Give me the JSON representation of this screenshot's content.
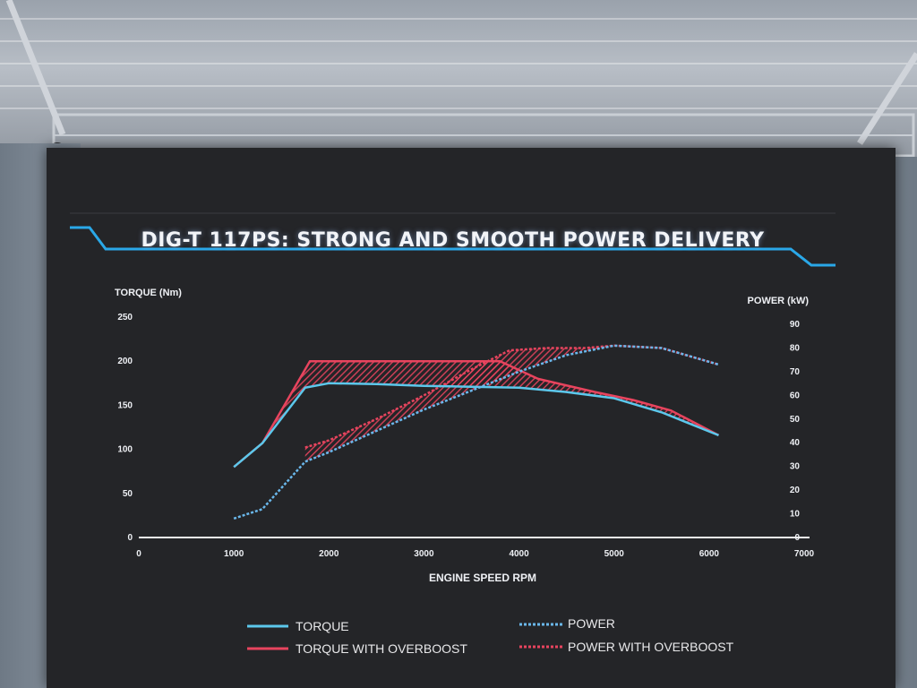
{
  "title": "DIG-T 117PS: STRONG AND SMOOTH POWER DELIVERY",
  "colors": {
    "torque": "#5cc8ec",
    "torque_overboost": "#e8445e",
    "power": "#6ab8ec",
    "power_overboost": "#e8445e",
    "accent_frame": "#2aa8e8",
    "background": "#242528"
  },
  "chart_data": {
    "type": "line",
    "title": "DIG-T 117PS: STRONG AND SMOOTH POWER DELIVERY",
    "xlabel": "ENGINE SPEED RPM",
    "ylabel": "TORQUE (Nm)",
    "y2label": "POWER (kW)",
    "xlim": [
      0,
      7000
    ],
    "ylim": [
      0,
      250
    ],
    "y2lim": [
      0,
      90
    ],
    "x_ticks": [
      "0",
      "1000",
      "2000",
      "3000",
      "4000",
      "5000",
      "6000",
      "7000"
    ],
    "y_ticks": [
      "0",
      "50",
      "100",
      "150",
      "200",
      "250"
    ],
    "y2_ticks": [
      "0",
      "10",
      "20",
      "30",
      "40",
      "50",
      "60",
      "70",
      "80",
      "90"
    ],
    "grid": false,
    "legend_position": "bottom",
    "series": [
      {
        "name": "TORQUE",
        "axis": "left",
        "style": "solid",
        "points": [
          [
            1000,
            80
          ],
          [
            1300,
            107
          ],
          [
            1750,
            170
          ],
          [
            2000,
            175
          ],
          [
            2500,
            174
          ],
          [
            3000,
            172
          ],
          [
            3500,
            171
          ],
          [
            4000,
            170
          ],
          [
            4500,
            165
          ],
          [
            5000,
            158
          ],
          [
            5500,
            142
          ],
          [
            6100,
            116
          ]
        ]
      },
      {
        "name": "TORQUE WITH OVERBOOST",
        "axis": "left",
        "style": "solid",
        "points": [
          [
            1000,
            80
          ],
          [
            1300,
            107
          ],
          [
            1800,
            200
          ],
          [
            2500,
            200
          ],
          [
            3000,
            200
          ],
          [
            3500,
            200
          ],
          [
            3800,
            200
          ],
          [
            4200,
            180
          ],
          [
            4800,
            165
          ],
          [
            5200,
            156
          ],
          [
            5600,
            144
          ],
          [
            6100,
            116
          ]
        ]
      },
      {
        "name": "POWER",
        "axis": "right",
        "style": "dotted",
        "points": [
          [
            1000,
            8
          ],
          [
            1300,
            12
          ],
          [
            1750,
            32
          ],
          [
            2000,
            36
          ],
          [
            2500,
            45
          ],
          [
            3000,
            54
          ],
          [
            3500,
            62
          ],
          [
            4000,
            70
          ],
          [
            4500,
            77
          ],
          [
            5000,
            81
          ],
          [
            5500,
            80
          ],
          [
            6100,
            73
          ]
        ]
      },
      {
        "name": "POWER WITH OVERBOOST",
        "axis": "right",
        "style": "dotted",
        "points": [
          [
            1750,
            38
          ],
          [
            2000,
            41
          ],
          [
            2500,
            50
          ],
          [
            3000,
            60
          ],
          [
            3500,
            71
          ],
          [
            3900,
            79
          ],
          [
            4300,
            80
          ],
          [
            4700,
            80
          ],
          [
            5000,
            81
          ],
          [
            5500,
            80
          ],
          [
            6100,
            73
          ]
        ]
      }
    ],
    "legend": [
      {
        "label": "TORQUE",
        "series": "TORQUE"
      },
      {
        "label": "POWER",
        "series": "POWER"
      },
      {
        "label": "TORQUE WITH OVERBOOST",
        "series": "TORQUE WITH OVERBOOST"
      },
      {
        "label": "POWER WITH OVERBOOST",
        "series": "POWER WITH OVERBOOST"
      }
    ]
  }
}
